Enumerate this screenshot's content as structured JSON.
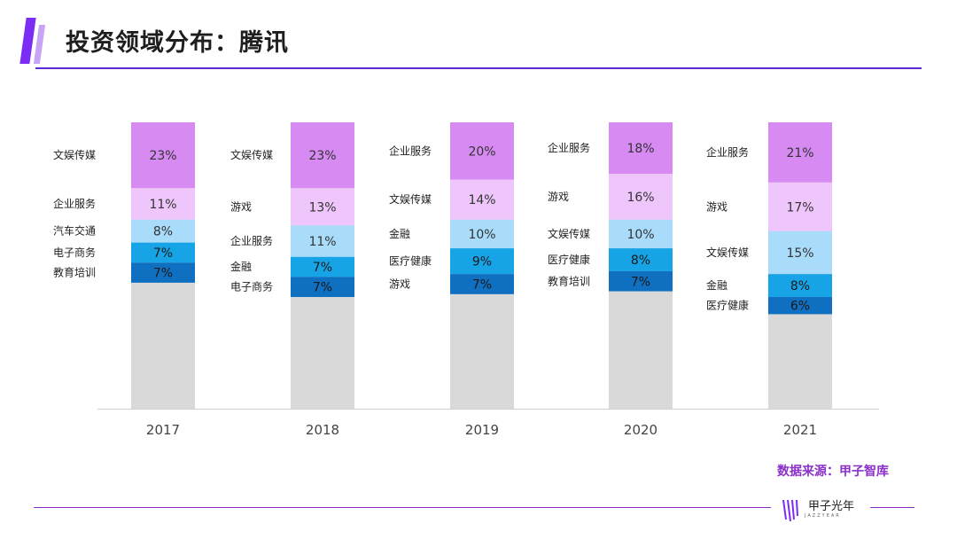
{
  "title": "投资领域分布：腾讯",
  "source": "数据来源：甲子智库",
  "logo": {
    "name": "甲子光年",
    "sub": "JAZZYEAR"
  },
  "colors": {
    "accent": "#7b2cf5",
    "source_text": "#8b2fc9",
    "segment_1": "#d68af2",
    "segment_2": "#efc6fb",
    "segment_3": "#a9dcfb",
    "segment_4": "#17a4e6",
    "segment_5": "#0f6fc0",
    "rest": "#d9d9d9"
  },
  "chart_data": {
    "type": "bar",
    "stacked": true,
    "ylim": [
      0,
      100
    ],
    "categories": [
      "2017",
      "2018",
      "2019",
      "2020",
      "2021"
    ],
    "bars": [
      {
        "year": "2017",
        "segments": [
          {
            "label": "文娱传媒",
            "value": 23,
            "text": "23%"
          },
          {
            "label": "企业服务",
            "value": 11,
            "text": "11%"
          },
          {
            "label": "汽车交通",
            "value": 8,
            "text": "8%"
          },
          {
            "label": "电子商务",
            "value": 7,
            "text": "7%"
          },
          {
            "label": "教育培训",
            "value": 7,
            "text": "7%"
          }
        ]
      },
      {
        "year": "2018",
        "segments": [
          {
            "label": "文娱传媒",
            "value": 23,
            "text": "23%"
          },
          {
            "label": "游戏",
            "value": 13,
            "text": "13%"
          },
          {
            "label": "企业服务",
            "value": 11,
            "text": "11%"
          },
          {
            "label": "金融",
            "value": 7,
            "text": "7%"
          },
          {
            "label": "电子商务",
            "value": 7,
            "text": "7%"
          }
        ]
      },
      {
        "year": "2019",
        "segments": [
          {
            "label": "企业服务",
            "value": 20,
            "text": "20%"
          },
          {
            "label": "文娱传媒",
            "value": 14,
            "text": "14%"
          },
          {
            "label": "金融",
            "value": 10,
            "text": "10%"
          },
          {
            "label": "医疗健康",
            "value": 9,
            "text": "9%"
          },
          {
            "label": "游戏",
            "value": 7,
            "text": "7%"
          }
        ]
      },
      {
        "year": "2020",
        "segments": [
          {
            "label": "企业服务",
            "value": 18,
            "text": "18%"
          },
          {
            "label": "游戏",
            "value": 16,
            "text": "16%"
          },
          {
            "label": "文娱传媒",
            "value": 10,
            "text": "10%"
          },
          {
            "label": "医疗健康",
            "value": 8,
            "text": "8%"
          },
          {
            "label": "教育培训",
            "value": 7,
            "text": "7%"
          }
        ]
      },
      {
        "year": "2021",
        "segments": [
          {
            "label": "企业服务",
            "value": 21,
            "text": "21%"
          },
          {
            "label": "游戏",
            "value": 17,
            "text": "17%"
          },
          {
            "label": "文娱传媒",
            "value": 15,
            "text": "15%"
          },
          {
            "label": "金融",
            "value": 8,
            "text": "8%"
          },
          {
            "label": "医疗健康",
            "value": 6,
            "text": "6%"
          }
        ]
      }
    ]
  }
}
